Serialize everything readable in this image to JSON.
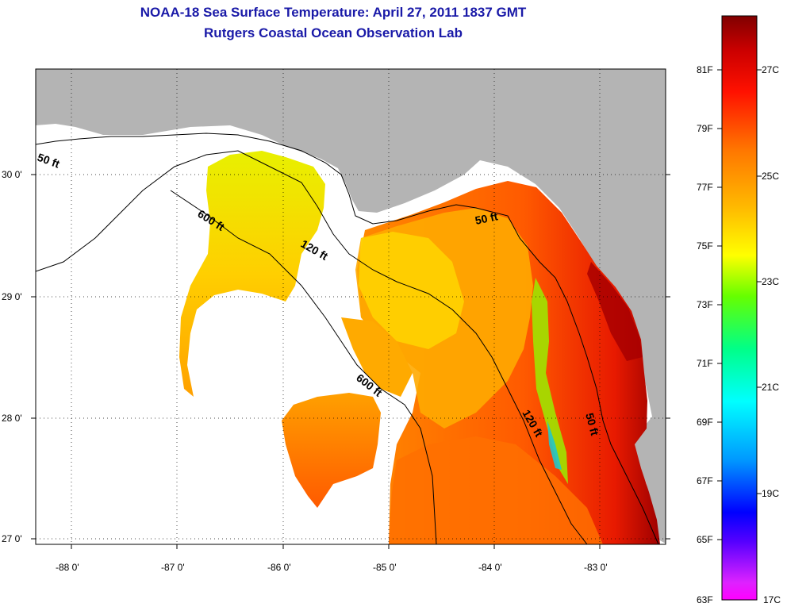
{
  "title": "NOAA-18 Sea Surface Temperature:  April 27, 2011 1837 GMT",
  "subtitle": "Rutgers Coastal Ocean Observation Lab",
  "map": {
    "lon_labels": [
      "-88 0'",
      "-87 0'",
      "-86 0'",
      "-85 0'",
      "-84 0'",
      "-83 0'"
    ],
    "lat_labels": [
      "30 0'",
      "29 0'",
      "28 0'",
      "27 0'"
    ],
    "contour_labels": [
      "50 ft",
      "600 ft",
      "120 ft",
      "50 ft",
      "600 ft",
      "120 ft",
      "50 ft"
    ],
    "colors": {
      "land": "#b4b4b4",
      "no_data": "#ffffff",
      "contour": "#000000",
      "grid": "#000000"
    }
  },
  "colorbar": {
    "fahrenheit_labels": [
      "81F",
      "79F",
      "77F",
      "75F",
      "73F",
      "71F",
      "69F",
      "67F",
      "65F",
      "63F"
    ],
    "celsius_labels": [
      "27C",
      "25C",
      "23C",
      "21C",
      "19C",
      "17C"
    ],
    "stops": [
      "#ff00ff",
      "#9900ff",
      "#0000ff",
      "#0099ff",
      "#00ffff",
      "#00ff88",
      "#66ff00",
      "#ffff00",
      "#ffbb00",
      "#ff7700",
      "#ff1100",
      "#cc0000",
      "#800000"
    ]
  }
}
